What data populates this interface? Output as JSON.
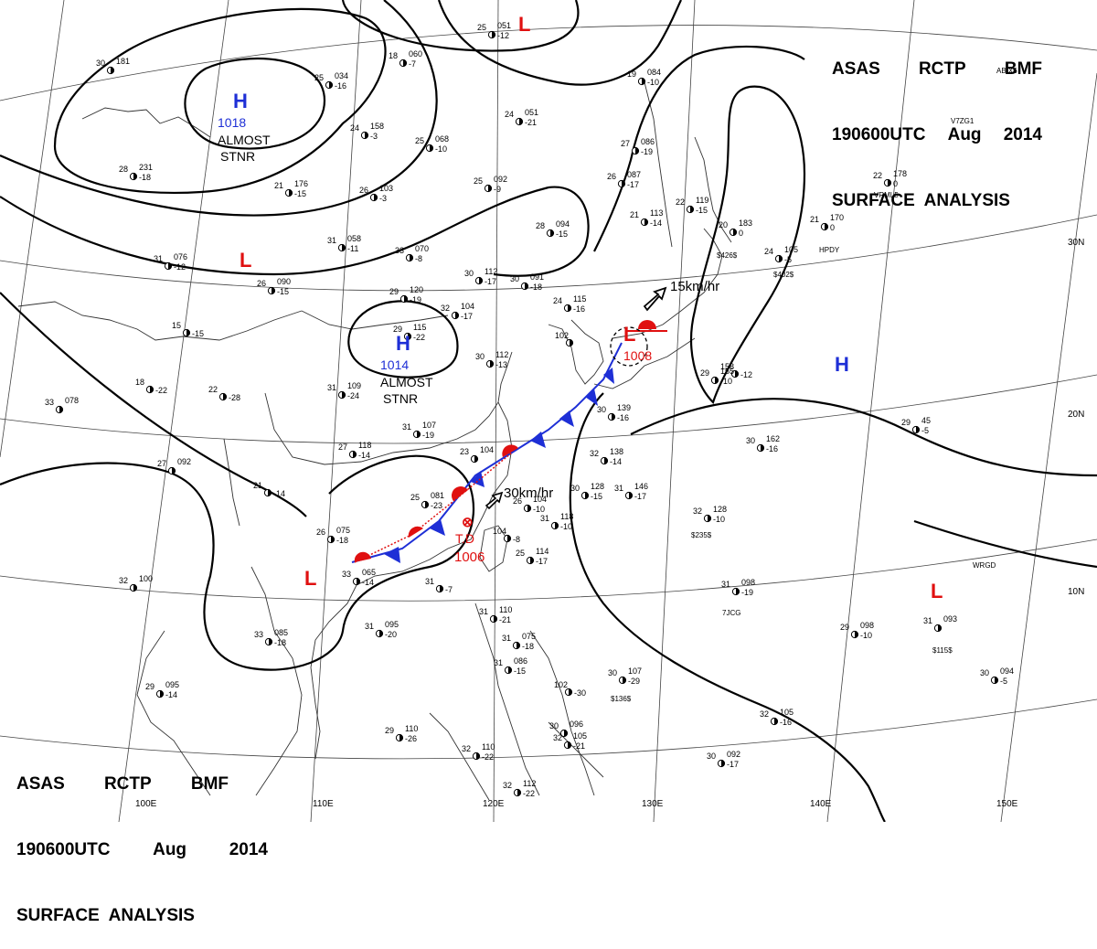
{
  "header": {
    "line1": [
      "ASAS",
      "RCTP",
      "BMF"
    ],
    "line2": [
      "190600UTC",
      "Aug",
      "2014"
    ],
    "line3": "SURFACE  ANALYSIS"
  },
  "graticule": {
    "lat_labels": [
      "30N",
      "20N",
      "10N"
    ],
    "lon_labels": [
      "100E",
      "110E",
      "120E",
      "130E",
      "140E",
      "150E"
    ]
  },
  "pressure_centers": [
    {
      "symbol": "H",
      "value": "1018",
      "note": [
        "ALMOST",
        "STNR"
      ],
      "color": "#1e2fd6"
    },
    {
      "symbol": "H",
      "value": "1014",
      "note": [
        "ALMOST",
        "STNR"
      ],
      "color": "#1e2fd6"
    },
    {
      "symbol": "H",
      "value": "",
      "note": [],
      "color": "#1e2fd6"
    },
    {
      "symbol": "L",
      "value": "",
      "note": [],
      "color": "#e01010"
    },
    {
      "symbol": "L",
      "value": "",
      "note": [],
      "color": "#e01010"
    },
    {
      "symbol": "L",
      "value": "1008",
      "note": [],
      "color": "#e01010"
    },
    {
      "symbol": "L",
      "value": "",
      "note": [],
      "color": "#e01010"
    },
    {
      "symbol": "L",
      "value": "",
      "note": [],
      "color": "#e01010"
    }
  ],
  "tropical_depression": {
    "label": "T.D",
    "value": "1006",
    "color": "#e01010"
  },
  "motion_arrows": [
    {
      "label": "15km/hr"
    },
    {
      "label": "30km/hr"
    }
  ],
  "stations": [
    {
      "t": "30",
      "p": "181",
      "d": ""
    },
    {
      "t": "25",
      "p": "034",
      "d": "-16"
    },
    {
      "t": "18",
      "p": "060",
      "d": "-7"
    },
    {
      "t": "25",
      "p": "051",
      "d": "-12"
    },
    {
      "t": "24",
      "p": "051",
      "d": "-21"
    },
    {
      "t": "19",
      "p": "084",
      "d": "-10"
    },
    {
      "t": "24",
      "p": "158",
      "d": "-3"
    },
    {
      "t": "25",
      "p": "068",
      "d": "-10"
    },
    {
      "t": "27",
      "p": "086",
      "d": "-19"
    },
    {
      "t": "26",
      "p": "087",
      "d": "-17"
    },
    {
      "t": "28",
      "p": "231",
      "d": "-18"
    },
    {
      "t": "26",
      "p": "103",
      "d": "-3"
    },
    {
      "t": "25",
      "p": "092",
      "d": "-9"
    },
    {
      "t": "21",
      "p": "176",
      "d": "-15"
    },
    {
      "t": "31",
      "p": "058",
      "d": "-11"
    },
    {
      "t": "33",
      "p": "070",
      "d": "-8"
    },
    {
      "t": "28",
      "p": "094",
      "d": "-15"
    },
    {
      "t": "21",
      "p": "113",
      "d": "-14"
    },
    {
      "t": "22",
      "p": "119",
      "d": "-15"
    },
    {
      "t": "20",
      "p": "183",
      "d": "0"
    },
    {
      "t": "24",
      "p": "105",
      "d": "-5"
    },
    {
      "t": "21",
      "p": "170",
      "d": "0"
    },
    {
      "t": "22",
      "p": "178",
      "d": "0"
    },
    {
      "t": "31",
      "p": "076",
      "d": "-12"
    },
    {
      "t": "26",
      "p": "090",
      "d": "-15"
    },
    {
      "t": "30",
      "p": "112",
      "d": "-17"
    },
    {
      "t": "30",
      "p": "091",
      "d": "-18"
    },
    {
      "t": "29",
      "p": "120",
      "d": "-19"
    },
    {
      "t": "32",
      "p": "104",
      "d": "-17"
    },
    {
      "t": "24",
      "p": "115",
      "d": "-16"
    },
    {
      "t": "15",
      "p": "",
      "d": "-15"
    },
    {
      "t": "29",
      "p": "115",
      "d": "-22"
    },
    {
      "t": "102",
      "p": "",
      "d": ""
    },
    {
      "t": "30",
      "p": "112",
      "d": "-13"
    },
    {
      "t": "18",
      "p": "",
      "d": "-22"
    },
    {
      "t": "22",
      "p": "",
      "d": "-28"
    },
    {
      "t": "31",
      "p": "109",
      "d": "-24"
    },
    {
      "t": "29",
      "p": "155",
      "d": "-10"
    },
    {
      "t": "158",
      "p": "",
      "d": "-12"
    },
    {
      "t": "33",
      "p": "078",
      "d": ""
    },
    {
      "t": "31",
      "p": "107",
      "d": "-19"
    },
    {
      "t": "27",
      "p": "118",
      "d": "-14"
    },
    {
      "t": "23",
      "p": "104",
      "d": ""
    },
    {
      "t": "30",
      "p": "139",
      "d": "-16"
    },
    {
      "t": "32",
      "p": "138",
      "d": "-14"
    },
    {
      "t": "30",
      "p": "162",
      "d": "-16"
    },
    {
      "t": "29",
      "p": "45",
      "d": "-5"
    },
    {
      "t": "27",
      "p": "092",
      "d": ""
    },
    {
      "t": "21",
      "p": "",
      "d": "-14"
    },
    {
      "t": "25",
      "p": "081",
      "d": "-23"
    },
    {
      "t": "26",
      "p": "104",
      "d": "-10"
    },
    {
      "t": "31",
      "p": "118",
      "d": "-10"
    },
    {
      "t": "30",
      "p": "128",
      "d": "-15"
    },
    {
      "t": "31",
      "p": "146",
      "d": "-17"
    },
    {
      "t": "32",
      "p": "128",
      "d": "-10"
    },
    {
      "t": "26",
      "p": "075",
      "d": "-18"
    },
    {
      "t": "104",
      "p": "",
      "d": "-8"
    },
    {
      "t": "25",
      "p": "114",
      "d": "-17"
    },
    {
      "t": "33",
      "p": "065",
      "d": "-14"
    },
    {
      "t": "31",
      "p": "",
      "d": "-7"
    },
    {
      "t": "32",
      "p": "100",
      "d": ""
    },
    {
      "t": "31",
      "p": "098",
      "d": "-19"
    },
    {
      "t": "31",
      "p": "110",
      "d": "-21"
    },
    {
      "t": "31",
      "p": "095",
      "d": "-20"
    },
    {
      "t": "33",
      "p": "085",
      "d": "-18"
    },
    {
      "t": "31",
      "p": "075",
      "d": "-18"
    },
    {
      "t": "29",
      "p": "098",
      "d": "-10"
    },
    {
      "t": "31",
      "p": "093",
      "d": ""
    },
    {
      "t": "31",
      "p": "086",
      "d": "-15"
    },
    {
      "t": "30",
      "p": "107",
      "d": "-29"
    },
    {
      "t": "102",
      "p": "",
      "d": "-30"
    },
    {
      "t": "30",
      "p": "094",
      "d": "-5"
    },
    {
      "t": "32",
      "p": "105",
      "d": "-16"
    },
    {
      "t": "29",
      "p": "110",
      "d": "-26"
    },
    {
      "t": "29",
      "p": "095",
      "d": "-14"
    },
    {
      "t": "32",
      "p": "110",
      "d": "-22"
    },
    {
      "t": "30",
      "p": "092",
      "d": "-17"
    },
    {
      "t": "30",
      "p": "096",
      "d": ""
    },
    {
      "t": "32",
      "p": "105",
      "d": "-21"
    },
    {
      "t": "32",
      "p": "112",
      "d": "-22"
    }
  ],
  "ship_labels": [
    "ABIX6",
    "V7ZG1",
    "VRML5",
    "HPDY",
    "$426$",
    "$402$",
    "$235$",
    "7JCG",
    "WRGD",
    "$115$",
    "$136$"
  ]
}
